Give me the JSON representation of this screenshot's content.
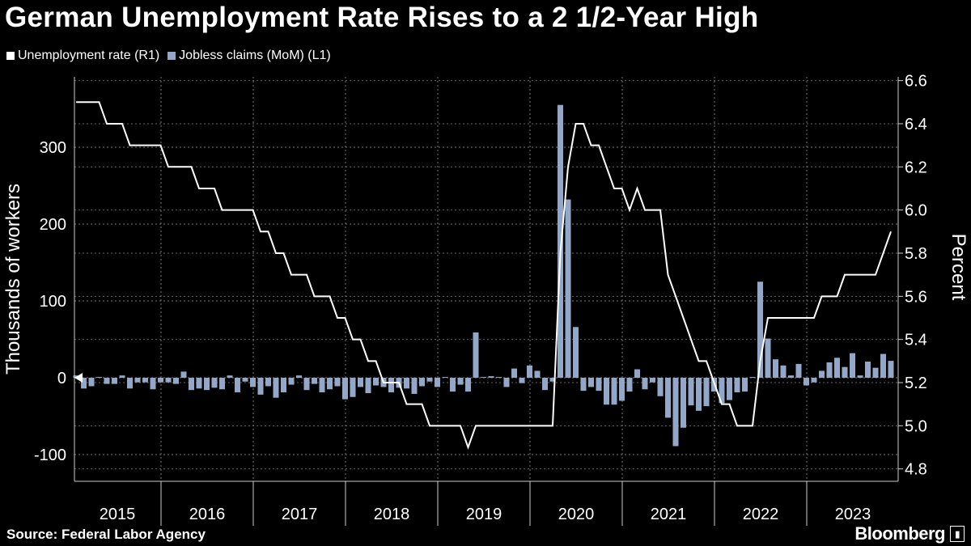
{
  "title": "German Unemployment Rate Rises to a 2 1/2-Year High",
  "source": "Source: Federal Labor Agency",
  "brand": "Bloomberg",
  "colors": {
    "rate": "#ffffff",
    "claims": "#93a8c8",
    "background": "#000000"
  },
  "chart_data": {
    "type": "bar+line",
    "title": "German Unemployment Rate Rises to a 2 1/2-Year High",
    "x_start": "2015-01",
    "x_end": "2023-11",
    "frequency": "monthly",
    "x_tick_labels": [
      "2015",
      "2016",
      "2017",
      "2018",
      "2019",
      "2020",
      "2021",
      "2022",
      "2023"
    ],
    "left_axis": {
      "label": "Thousands of workers",
      "ticks": [
        -100,
        0,
        100,
        200,
        300
      ],
      "range": [
        -130,
        390
      ]
    },
    "right_axis": {
      "label": "Percent",
      "ticks": [
        4.8,
        5.0,
        5.2,
        5.4,
        5.6,
        5.8,
        6.0,
        6.2,
        6.4,
        6.6
      ],
      "range": [
        4.7,
        6.68
      ]
    },
    "legend": {
      "placement": "top-left"
    },
    "series": [
      {
        "name": "Unemployment rate (R1)",
        "type": "line",
        "axis": "right",
        "values": [
          6.5,
          6.5,
          6.5,
          6.5,
          6.4,
          6.4,
          6.4,
          6.3,
          6.3,
          6.3,
          6.3,
          6.3,
          6.2,
          6.2,
          6.2,
          6.2,
          6.1,
          6.1,
          6.1,
          6.0,
          6.0,
          6.0,
          6.0,
          6.0,
          5.9,
          5.9,
          5.8,
          5.8,
          5.7,
          5.7,
          5.7,
          5.6,
          5.6,
          5.6,
          5.5,
          5.5,
          5.4,
          5.4,
          5.3,
          5.3,
          5.2,
          5.2,
          5.2,
          5.1,
          5.1,
          5.1,
          5.0,
          5.0,
          5.0,
          5.0,
          5.0,
          4.9,
          5.0,
          5.0,
          5.0,
          5.0,
          5.0,
          5.0,
          5.0,
          5.0,
          5.0,
          5.0,
          5.0,
          5.8,
          6.2,
          6.4,
          6.4,
          6.3,
          6.3,
          6.2,
          6.1,
          6.1,
          6.0,
          6.1,
          6.0,
          6.0,
          6.0,
          5.7,
          5.6,
          5.5,
          5.4,
          5.3,
          5.3,
          5.2,
          5.1,
          5.1,
          5.0,
          5.0,
          5.0,
          5.3,
          5.5,
          5.5,
          5.5,
          5.5,
          5.5,
          5.5,
          5.5,
          5.6,
          5.6,
          5.6,
          5.7,
          5.7,
          5.7,
          5.7,
          5.7,
          5.8,
          5.9
        ]
      },
      {
        "name": "Jobless claims (MoM) (L1)",
        "type": "bar",
        "axis": "left",
        "values": [
          3,
          -14,
          -11,
          1,
          -8,
          -8,
          3,
          -14,
          -6,
          -6,
          -15,
          -6,
          -6,
          -8,
          8,
          -16,
          -14,
          -16,
          -13,
          -15,
          3,
          -19,
          -5,
          -12,
          -22,
          -11,
          -26,
          -19,
          -9,
          3,
          -16,
          -8,
          -19,
          -15,
          -11,
          -28,
          -25,
          -12,
          -20,
          -10,
          -12,
          -19,
          -13,
          -14,
          -21,
          -11,
          -5,
          -12,
          1,
          -18,
          -9,
          -18,
          59,
          1,
          2,
          1,
          -12,
          12,
          -7,
          16,
          9,
          -16,
          -5,
          355,
          232,
          66,
          -17,
          -12,
          -17,
          -35,
          -35,
          -30,
          -18,
          11,
          -15,
          -6,
          -24,
          -52,
          -89,
          -65,
          -36,
          -43,
          -37,
          -18,
          -33,
          -29,
          -19,
          -18,
          1,
          125,
          51,
          24,
          16,
          3,
          18,
          -10,
          -6,
          9,
          20,
          26,
          14,
          32,
          3,
          21,
          13,
          31,
          22
        ]
      }
    ]
  }
}
